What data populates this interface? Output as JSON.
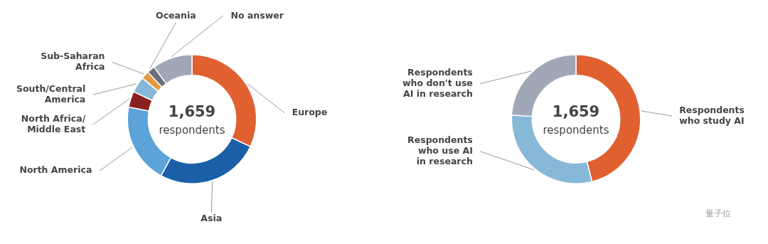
{
  "chart_data": [
    {
      "type": "doughnut",
      "categories": [
        "Europe",
        "Asia",
        "North America",
        "North Africa/\nMiddle East",
        "South/Central\nAmerica",
        "Sub-Saharan\nAfrica",
        "Oceania",
        "No answer"
      ],
      "values": [
        32,
        26,
        20,
        4,
        4,
        2,
        2,
        10
      ],
      "colors": [
        "#e06030",
        "#1a5fa8",
        "#5ba3d9",
        "#8b2020",
        "#87b8d8",
        "#e09a40",
        "#6a6f7a",
        "#a0a8b8"
      ],
      "annotations": [
        "1,659",
        "respondents"
      ],
      "legend": false
    },
    {
      "type": "doughnut",
      "categories": [
        "Respondents\nwho study AI",
        "Respondents\nwho use AI\nin research",
        "Respondents\nwho don't use\nAI in research"
      ],
      "values": [
        46,
        30,
        24
      ],
      "colors": [
        "#e06030",
        "#87b8d8",
        "#a0a8b8"
      ],
      "annotations": [
        "1,659",
        "respondents"
      ],
      "legend": false
    }
  ],
  "annotations": [
    "量子位"
  ]
}
